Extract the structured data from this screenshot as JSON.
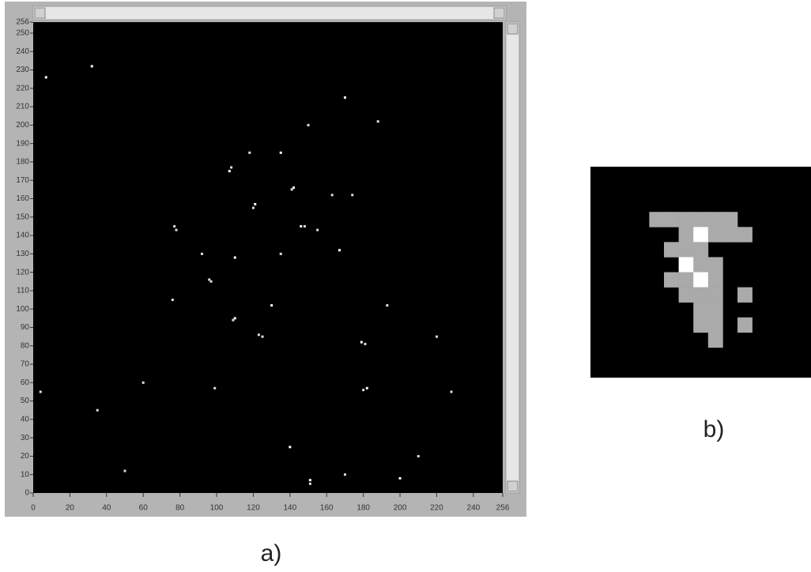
{
  "panel_a": {
    "caption": "a)",
    "xlim": [
      0,
      256
    ],
    "ylim": [
      0,
      256
    ],
    "xticks": [
      0,
      20,
      40,
      60,
      80,
      100,
      120,
      140,
      160,
      180,
      200,
      220,
      240,
      256
    ],
    "yticks": [
      0,
      10,
      20,
      30,
      40,
      50,
      60,
      70,
      80,
      90,
      100,
      110,
      120,
      130,
      140,
      150,
      160,
      170,
      180,
      190,
      200,
      210,
      220,
      230,
      240,
      250,
      256
    ],
    "points": [
      [
        107,
        175
      ],
      [
        108,
        177
      ],
      [
        141,
        165
      ],
      [
        142,
        166
      ],
      [
        163,
        162
      ],
      [
        120,
        155
      ],
      [
        121,
        157
      ],
      [
        77,
        145
      ],
      [
        78,
        143
      ],
      [
        146,
        145
      ],
      [
        148,
        145
      ],
      [
        155,
        143
      ],
      [
        110,
        128
      ],
      [
        96,
        116
      ],
      [
        97,
        115
      ],
      [
        130,
        102
      ],
      [
        193,
        102
      ],
      [
        109,
        94
      ],
      [
        110,
        95
      ],
      [
        123,
        86
      ],
      [
        125,
        85
      ],
      [
        179,
        82
      ],
      [
        181,
        81
      ],
      [
        180,
        56
      ],
      [
        182,
        57
      ],
      [
        99,
        57
      ],
      [
        151,
        5
      ],
      [
        151,
        7
      ],
      [
        135,
        130
      ],
      [
        118,
        185
      ],
      [
        7,
        226
      ],
      [
        188,
        202
      ],
      [
        170,
        10
      ],
      [
        200,
        8
      ],
      [
        4,
        55
      ],
      [
        50,
        12
      ],
      [
        32,
        232
      ],
      [
        210,
        20
      ],
      [
        150,
        200
      ],
      [
        170,
        215
      ],
      [
        60,
        60
      ],
      [
        92,
        130
      ],
      [
        167,
        132
      ],
      [
        228,
        55
      ],
      [
        35,
        45
      ],
      [
        140,
        25
      ],
      [
        220,
        85
      ],
      [
        76,
        105
      ],
      [
        135,
        185
      ],
      [
        174,
        162
      ]
    ]
  },
  "panel_b": {
    "caption": "b)",
    "pixels": [
      [
        0,
        0,
        0,
        0,
        0,
        0,
        0,
        0,
        0,
        0,
        0,
        0,
        0,
        0,
        0
      ],
      [
        0,
        0,
        0,
        0,
        0,
        0,
        0,
        0,
        0,
        0,
        0,
        0,
        0,
        0,
        0
      ],
      [
        0,
        0,
        0,
        0,
        0,
        0,
        0,
        0,
        0,
        0,
        0,
        0,
        0,
        0,
        0
      ],
      [
        0,
        0,
        0,
        0,
        1,
        1,
        1,
        1,
        1,
        1,
        0,
        0,
        0,
        0,
        0
      ],
      [
        0,
        0,
        0,
        0,
        0,
        0,
        1,
        2,
        1,
        1,
        1,
        0,
        0,
        0,
        0
      ],
      [
        0,
        0,
        0,
        0,
        0,
        1,
        1,
        1,
        0,
        0,
        0,
        0,
        0,
        0,
        0
      ],
      [
        0,
        0,
        0,
        0,
        0,
        0,
        2,
        1,
        1,
        0,
        0,
        0,
        0,
        0,
        0
      ],
      [
        0,
        0,
        0,
        0,
        0,
        1,
        1,
        2,
        1,
        0,
        0,
        0,
        0,
        0,
        0
      ],
      [
        0,
        0,
        0,
        0,
        0,
        0,
        1,
        1,
        1,
        0,
        1,
        0,
        0,
        0,
        0
      ],
      [
        0,
        0,
        0,
        0,
        0,
        0,
        0,
        1,
        1,
        0,
        0,
        0,
        0,
        0,
        0
      ],
      [
        0,
        0,
        0,
        0,
        0,
        0,
        0,
        1,
        1,
        0,
        1,
        0,
        0,
        0,
        0
      ],
      [
        0,
        0,
        0,
        0,
        0,
        0,
        0,
        0,
        1,
        0,
        0,
        0,
        0,
        0,
        0
      ],
      [
        0,
        0,
        0,
        0,
        0,
        0,
        0,
        0,
        0,
        0,
        0,
        0,
        0,
        0,
        0
      ],
      [
        0,
        0,
        0,
        0,
        0,
        0,
        0,
        0,
        0,
        0,
        0,
        0,
        0,
        0,
        0
      ]
    ]
  }
}
